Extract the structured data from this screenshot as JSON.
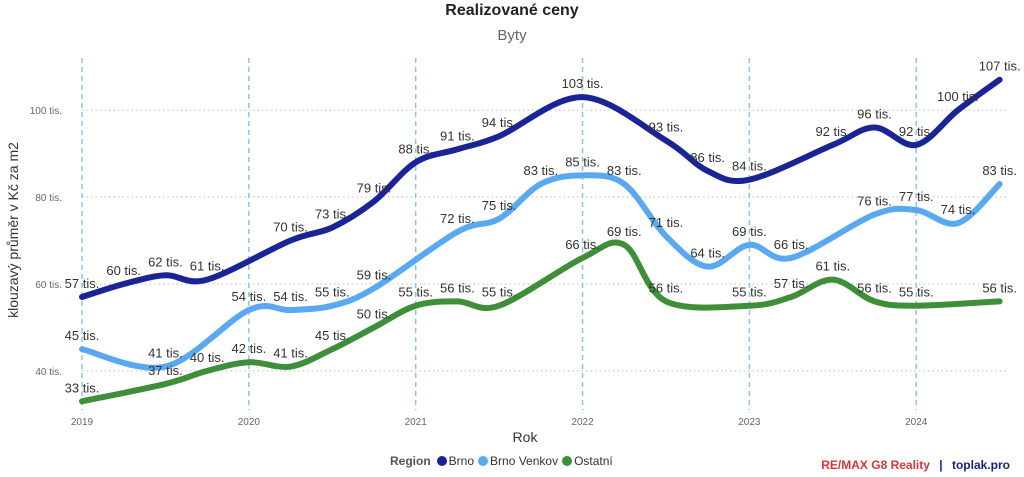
{
  "chart_data": {
    "type": "line",
    "title": "Realizované ceny",
    "subtitle": "Byty",
    "xlabel": "Rok",
    "ylabel": "klouzavý průměr v Kč za m2",
    "x_ticks": [
      "2019",
      "2020",
      "2021",
      "2022",
      "2023",
      "2024"
    ],
    "y_ticks": [
      "40 tis.",
      "60 tis.",
      "80 tis.",
      "100 tis."
    ],
    "y_tick_values": [
      40,
      60,
      80,
      100
    ],
    "xlim": [
      2019,
      2024.55
    ],
    "ylim": [
      31,
      112
    ],
    "grid": true,
    "legend_title": "Region",
    "legend_position": "bottom",
    "series": [
      {
        "name": "Brno",
        "color": "#1a2494",
        "points": [
          [
            2019.0,
            57
          ],
          [
            2019.25,
            60
          ],
          [
            2019.5,
            62
          ],
          [
            2019.75,
            61
          ],
          [
            2020.25,
            70
          ],
          [
            2020.5,
            73
          ],
          [
            2020.75,
            79
          ],
          [
            2021.0,
            88
          ],
          [
            2021.25,
            91
          ],
          [
            2021.5,
            94
          ],
          [
            2022.0,
            103
          ],
          [
            2022.5,
            93
          ],
          [
            2022.75,
            86
          ],
          [
            2023.0,
            84
          ],
          [
            2023.5,
            92
          ],
          [
            2023.75,
            96
          ],
          [
            2024.0,
            92
          ],
          [
            2024.25,
            100
          ],
          [
            2024.5,
            107
          ]
        ],
        "labels": [
          "57 tis.",
          "60 tis.",
          "62 tis.",
          "61 tis.",
          "70 tis.",
          "73 tis.",
          "79 tis.",
          "88 tis.",
          "91 tis.",
          "94 tis.",
          "103 tis.",
          "93 tis.",
          "86 tis.",
          "84 tis.",
          "92 tis.",
          "96 tis.",
          "92 tis.",
          "100 tis.",
          "107 tis."
        ]
      },
      {
        "name": "Brno Venkov",
        "color": "#5aa9f0",
        "points": [
          [
            2019.0,
            45
          ],
          [
            2019.5,
            41
          ],
          [
            2020.0,
            54
          ],
          [
            2020.25,
            54
          ],
          [
            2020.5,
            55
          ],
          [
            2020.75,
            59
          ],
          [
            2021.25,
            72
          ],
          [
            2021.5,
            75
          ],
          [
            2021.75,
            83
          ],
          [
            2022.0,
            85
          ],
          [
            2022.25,
            83
          ],
          [
            2022.5,
            71
          ],
          [
            2022.75,
            64
          ],
          [
            2023.0,
            69
          ],
          [
            2023.25,
            66
          ],
          [
            2023.75,
            76
          ],
          [
            2024.0,
            77
          ],
          [
            2024.25,
            74
          ],
          [
            2024.5,
            83
          ]
        ],
        "labels": [
          "45 tis.",
          "41 tis.",
          "54 tis.",
          "54 tis.",
          "55 tis.",
          "59 tis.",
          "72 tis.",
          "75 tis.",
          "83 tis.",
          "85 tis.",
          "83 tis.",
          "71 tis.",
          "64 tis.",
          "69 tis.",
          "66 tis.",
          "76 tis.",
          "77 tis.",
          "74 tis.",
          "83 tis."
        ]
      },
      {
        "name": "Ostatní",
        "color": "#3f8f3a",
        "points": [
          [
            2019.0,
            33
          ],
          [
            2019.5,
            37
          ],
          [
            2019.75,
            40
          ],
          [
            2020.0,
            42
          ],
          [
            2020.25,
            41
          ],
          [
            2020.5,
            45
          ],
          [
            2020.75,
            50
          ],
          [
            2021.0,
            55
          ],
          [
            2021.25,
            56
          ],
          [
            2021.5,
            55
          ],
          [
            2022.0,
            66
          ],
          [
            2022.25,
            69
          ],
          [
            2022.5,
            56
          ],
          [
            2023.0,
            55
          ],
          [
            2023.25,
            57
          ],
          [
            2023.5,
            61
          ],
          [
            2023.75,
            56
          ],
          [
            2024.0,
            55
          ],
          [
            2024.5,
            56
          ]
        ],
        "labels": [
          "33 tis.",
          "37 tis.",
          "40 tis.",
          "42 tis.",
          "41 tis.",
          "45 tis.",
          "50 tis.",
          "55 tis.",
          "56 tis.",
          "55 tis.",
          "66 tis.",
          "69 tis.",
          "56 tis.",
          "55 tis.",
          "57 tis.",
          "61 tis.",
          "56 tis.",
          "55 tis.",
          "56 tis."
        ]
      }
    ]
  },
  "branding": {
    "remax": "RE/MAX G8 Reality",
    "separator": "|",
    "site": "toplak.pro"
  }
}
